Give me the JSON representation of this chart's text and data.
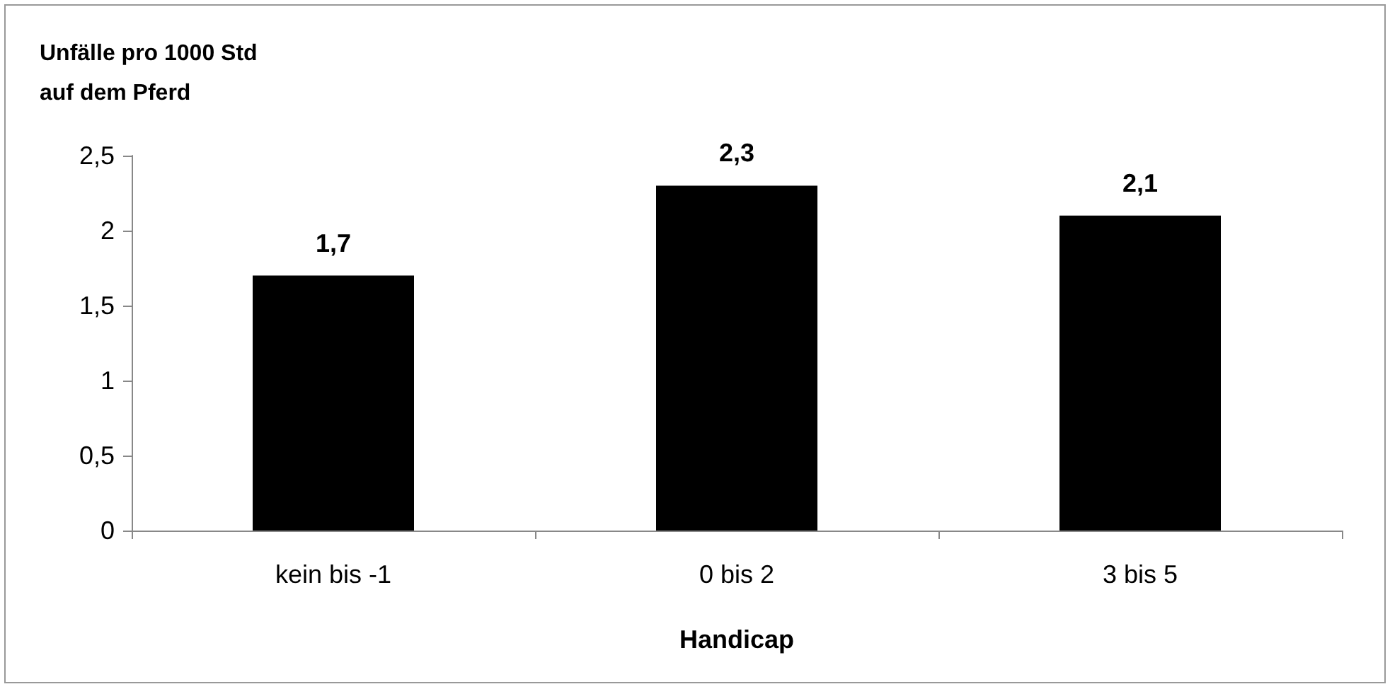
{
  "chart_data": {
    "type": "bar",
    "ylabel": "Unfälle pro 1000 Std auf dem Pferd",
    "xlabel": "Handicap",
    "categories": [
      "kein bis -1",
      "0 bis 2",
      "3 bis 5"
    ],
    "values": [
      1.7,
      2.3,
      2.1
    ],
    "color": "#000000",
    "value_labels": [
      "1,7",
      "2,3",
      "2,1"
    ],
    "ylim": [
      0,
      2.5
    ],
    "yticks": [
      0,
      {
        "value": 0.5,
        "label": "0,5"
      },
      1,
      {
        "value": 1.5,
        "label": "1,5"
      },
      2,
      {
        "value": 2.5,
        "label": "2,5"
      }
    ],
    "grid": false
  }
}
